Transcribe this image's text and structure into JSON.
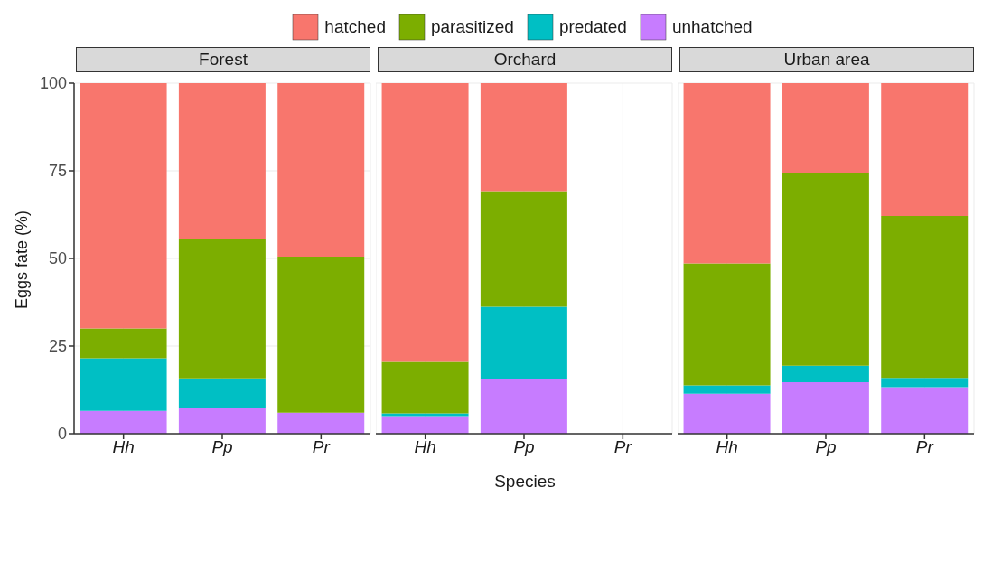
{
  "chart_data": [
    {
      "type": "bar",
      "title": "Forest",
      "ylabel": "Eggs fate (%)",
      "categories": [
        "Hh",
        "Pp",
        "Pr"
      ],
      "stacked": true,
      "ylim": [
        0,
        100
      ],
      "yticks": [
        0,
        25,
        50,
        75,
        100
      ],
      "grid": true,
      "legend": "top",
      "series": [
        {
          "name": "unhatched",
          "color": "#c77cff",
          "values": [
            6.5,
            7.2,
            6
          ]
        },
        {
          "name": "predated",
          "color": "#00bfc4",
          "values": [
            15,
            8.6,
            0
          ]
        },
        {
          "name": "parasitized",
          "color": "#7cae00",
          "values": [
            8.5,
            39.6,
            44.5
          ]
        },
        {
          "name": "hatched",
          "color": "#f8766d",
          "values": [
            70,
            44.6,
            49.5
          ]
        }
      ]
    },
    {
      "type": "bar",
      "title": "Orchard",
      "xlabel": "Species",
      "categories": [
        "Hh",
        "Pp",
        "Pr"
      ],
      "stacked": true,
      "ylim": [
        0,
        100
      ],
      "yticks": [
        0,
        25,
        50,
        75,
        100
      ],
      "grid": true,
      "tick_labels": "x",
      "series": [
        {
          "color": "#c77cff",
          "values": [
            5,
            15.7,
            null
          ]
        },
        {
          "color": "#00bfc4",
          "values": [
            0.8,
            20.5,
            null
          ]
        },
        {
          "color": "#7cae00",
          "values": [
            14.7,
            33,
            null
          ]
        },
        {
          "color": "#f8766d",
          "values": [
            79.5,
            30.8,
            null
          ]
        }
      ]
    },
    {
      "type": "bar",
      "title": "Urban area",
      "categories": [
        "Hh",
        "Pp",
        "Pr"
      ],
      "stacked": true,
      "ylim": [
        0,
        100
      ],
      "yticks": [
        0,
        25,
        50,
        75,
        100
      ],
      "grid": true,
      "tick_labels": "x",
      "series": [
        {
          "color": "#c77cff",
          "values": [
            11.4,
            14.7,
            13.3
          ]
        },
        {
          "color": "#00bfc4",
          "values": [
            2.4,
            4.7,
            2.6
          ]
        },
        {
          "color": "#7cae00",
          "values": [
            34.8,
            55.1,
            46.2
          ]
        },
        {
          "color": "#f8766d",
          "values": [
            51.4,
            25.5,
            37.9
          ]
        }
      ]
    }
  ]
}
